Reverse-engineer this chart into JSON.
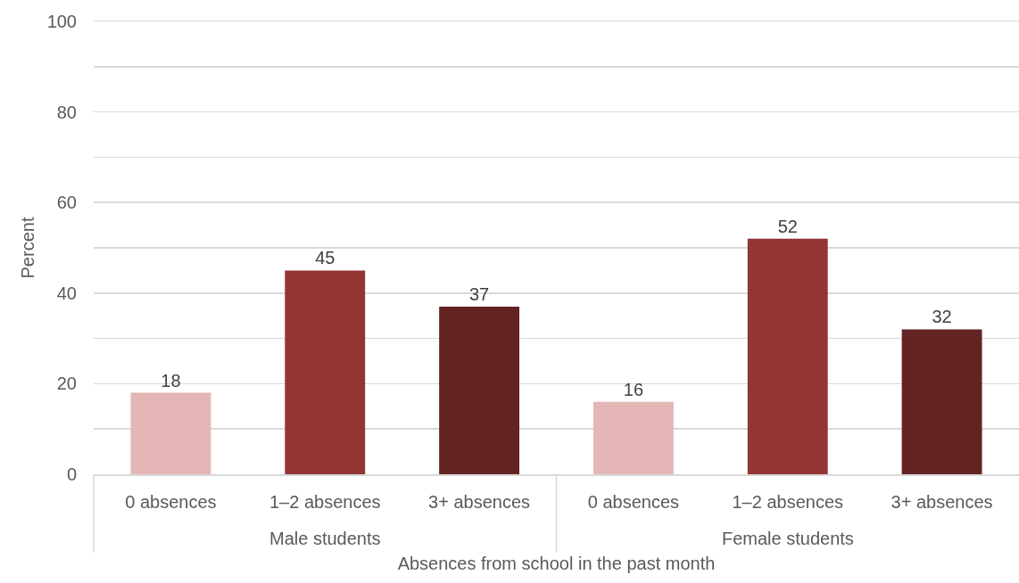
{
  "chart_data": {
    "type": "bar",
    "xlabel": "Absences from school in the past month",
    "ylabel": "Percent",
    "categories": [
      "0 absences",
      "1–2 absences",
      "3+ absences",
      "0 absences",
      "1–2 absences",
      "3+ absences"
    ],
    "values": [
      18,
      45,
      37,
      16,
      52,
      32
    ],
    "colors": [
      "#e4b6b6",
      "#933535",
      "#632323",
      "#e4b6b6",
      "#933535",
      "#632323"
    ],
    "ylim": [
      0,
      100
    ],
    "yticks": [
      0,
      {
        "value": 10,
        "label": null
      },
      20,
      {
        "value": 30,
        "label": null
      },
      40,
      {
        "value": 50,
        "label": null
      },
      60,
      {
        "value": 70,
        "label": null
      },
      80,
      {
        "value": 90,
        "label": null
      },
      100
    ],
    "grid": "y",
    "data_labels": true,
    "annotations": [
      "Male students",
      "Female students"
    ]
  }
}
